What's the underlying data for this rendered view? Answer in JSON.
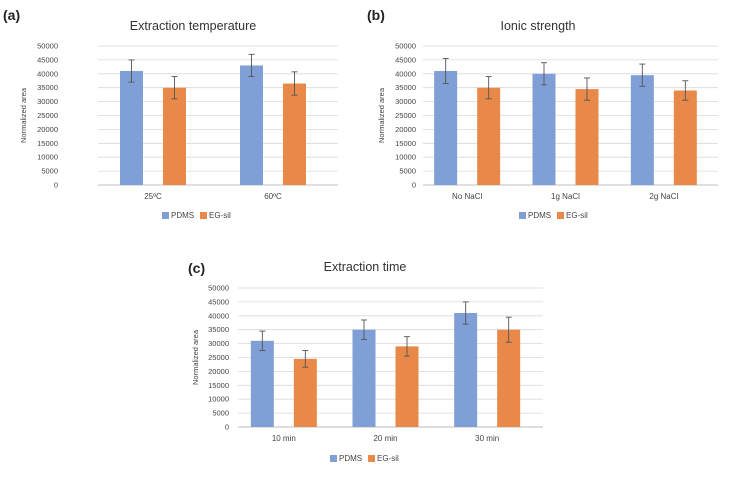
{
  "legend": {
    "series1": "PDMS",
    "series2": "EG-sil"
  },
  "colors": {
    "PDMS": "#7f9fd6",
    "EG-sil": "#e8894a",
    "grid": "#d9d9d9",
    "error": "#555555",
    "axis": "#bfbfbf"
  },
  "chart_data": [
    {
      "panel": "(a)",
      "type": "bar",
      "title": "Extraction temperature",
      "ylabel": "Normalized area",
      "xlabel": "",
      "ylim": [
        0,
        50000
      ],
      "yticks": [
        0,
        5000,
        10000,
        15000,
        20000,
        25000,
        30000,
        35000,
        40000,
        45000,
        50000
      ],
      "grid": true,
      "legend_position": "bottom",
      "categories": [
        "25ºC",
        "60ºC"
      ],
      "series": [
        {
          "name": "PDMS",
          "values": [
            41000,
            43000
          ],
          "errors": [
            4000,
            4000
          ]
        },
        {
          "name": "EG-sil",
          "values": [
            35000,
            36500
          ],
          "errors": [
            4000,
            4200
          ]
        }
      ]
    },
    {
      "panel": "(b)",
      "type": "bar",
      "title": "Ionic strength",
      "ylabel": "Normalized area",
      "xlabel": "",
      "ylim": [
        0,
        50000
      ],
      "yticks": [
        0,
        5000,
        10000,
        15000,
        20000,
        25000,
        30000,
        35000,
        40000,
        45000,
        50000
      ],
      "grid": true,
      "legend_position": "bottom",
      "categories": [
        "No NaCl",
        "1g NaCl",
        "2g NaCl"
      ],
      "series": [
        {
          "name": "PDMS",
          "values": [
            41000,
            40000,
            39500
          ],
          "errors": [
            4500,
            4000,
            4000
          ]
        },
        {
          "name": "EG-sil",
          "values": [
            35000,
            34500,
            34000
          ],
          "errors": [
            4000,
            4000,
            3500
          ]
        }
      ]
    },
    {
      "panel": "(c)",
      "type": "bar",
      "title": "Extraction time",
      "ylabel": "Normalized area",
      "xlabel": "",
      "ylim": [
        0,
        50000
      ],
      "yticks": [
        0,
        5000,
        10000,
        15000,
        20000,
        25000,
        30000,
        35000,
        40000,
        45000,
        50000
      ],
      "grid": true,
      "legend_position": "bottom",
      "categories": [
        "10 min",
        "20 min",
        "30 min"
      ],
      "series": [
        {
          "name": "PDMS",
          "values": [
            31000,
            35000,
            41000
          ],
          "errors": [
            3500,
            3500,
            4000
          ]
        },
        {
          "name": "EG-sil",
          "values": [
            24500,
            29000,
            35000
          ],
          "errors": [
            3000,
            3500,
            4500
          ]
        }
      ]
    }
  ]
}
